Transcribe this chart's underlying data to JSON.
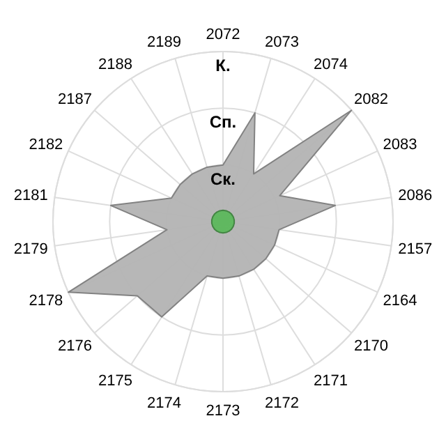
{
  "chart_data": {
    "type": "radar",
    "categories": [
      "2072",
      "2073",
      "2074",
      "2082",
      "2083",
      "2086",
      "2157",
      "2164",
      "2170",
      "2171",
      "2172",
      "2173",
      "2174",
      "2175",
      "2176",
      "2178",
      "2179",
      "2181",
      "2182",
      "2187",
      "2188",
      "2189"
    ],
    "series": [
      {
        "color": "#b3b3b3",
        "values": [
          1,
          2,
          1,
          3,
          1.1,
          2,
          1,
          1,
          1,
          1,
          1,
          1,
          1,
          2,
          2,
          3,
          1,
          2,
          1,
          1,
          1,
          1
        ]
      },
      {
        "color": "#5cb85c",
        "values": [
          0.2,
          0.2,
          0.2,
          0.2,
          0.2,
          0.2,
          0.2,
          0.2,
          0.2,
          0.2,
          0.2,
          0.2,
          0.2,
          0.2,
          0.2,
          0.2,
          0.2,
          0.2,
          0.2,
          0.2,
          0.2,
          0.2
        ]
      }
    ],
    "ylim": [
      0,
      3
    ],
    "yticks": [
      {
        "value": 1,
        "label": "Ск."
      },
      {
        "value": 2,
        "label": "Сп."
      },
      {
        "value": 3,
        "label": "К."
      }
    ],
    "grid": true
  }
}
